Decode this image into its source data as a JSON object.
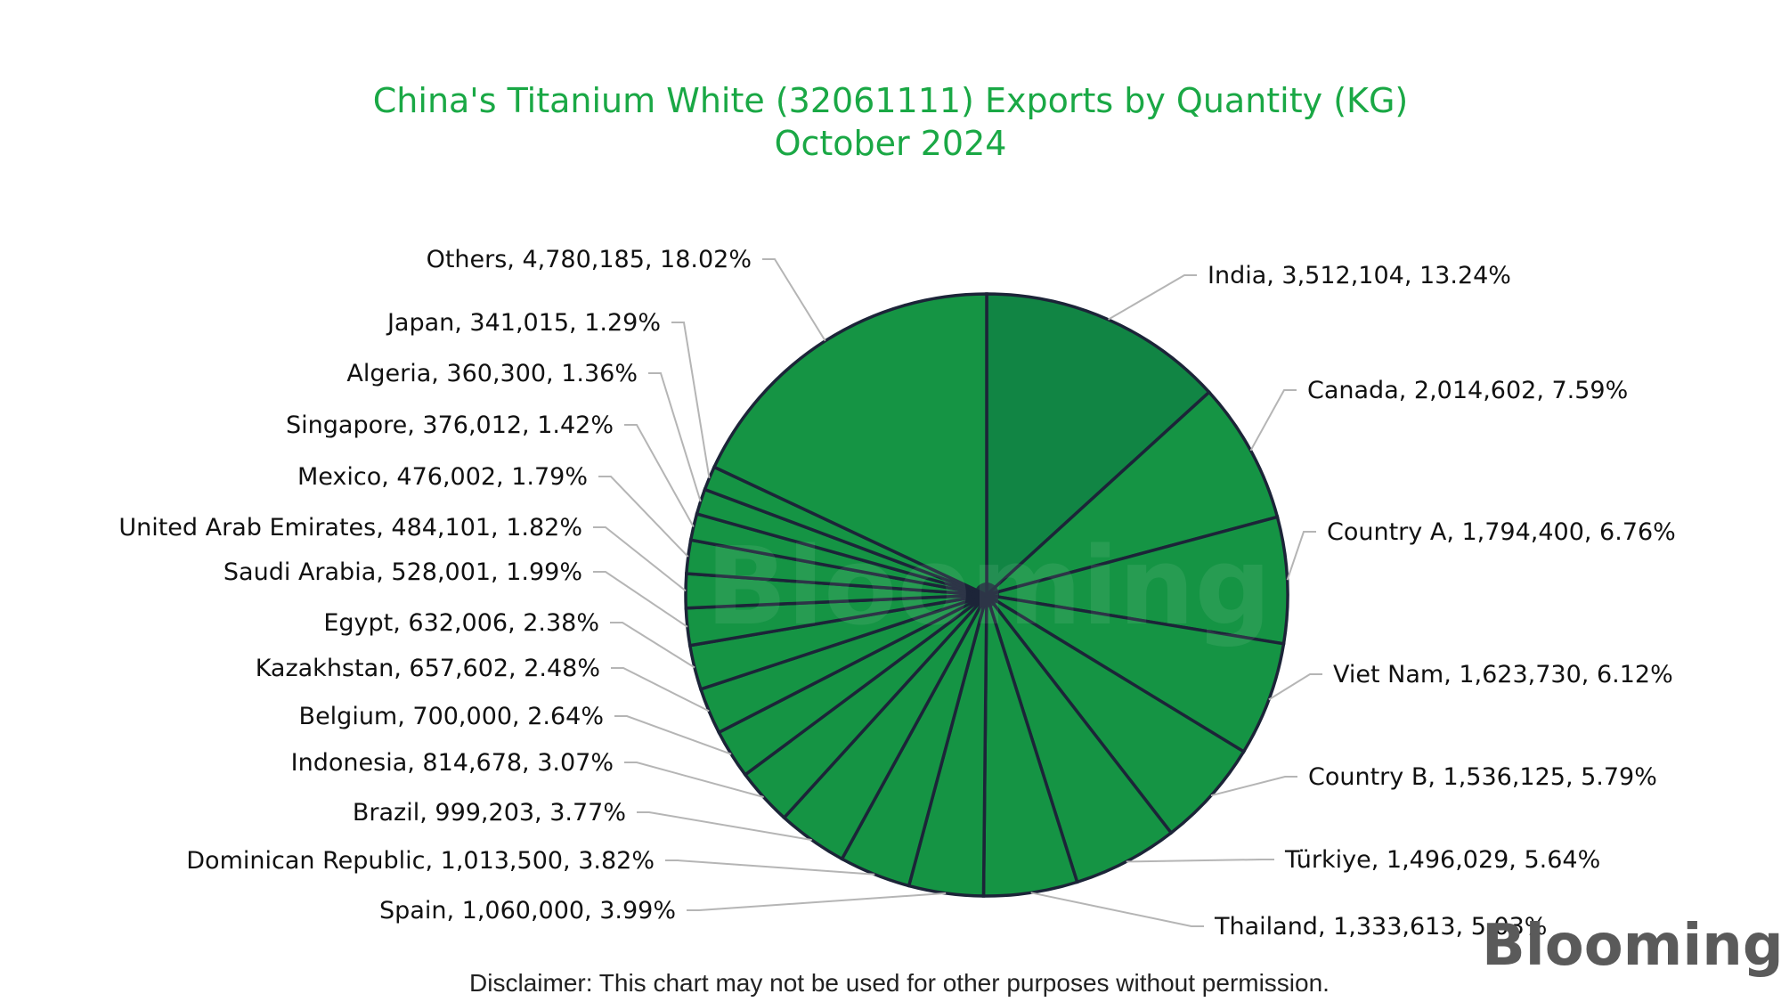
{
  "chart_data": {
    "type": "pie",
    "title": "China's Titanium White (32061111) Exports by Quantity (KG)",
    "subtitle": "October 2024",
    "slices": [
      {
        "name": "India",
        "value": 3512104,
        "value_label": "3,512,104",
        "percent": "13.24%",
        "color": "#118544"
      },
      {
        "name": "Canada",
        "value": 2014602,
        "value_label": "2,014,602",
        "percent": "7.59%",
        "color": "#159444"
      },
      {
        "name": "Country A",
        "value": 1794400,
        "value_label": "1,794,400",
        "percent": "6.76%",
        "color": "#159444"
      },
      {
        "name": "Viet Nam",
        "value": 1623730,
        "value_label": "1,623,730",
        "percent": "6.12%",
        "color": "#159444"
      },
      {
        "name": "Country B",
        "value": 1536125,
        "value_label": "1,536,125",
        "percent": "5.79%",
        "color": "#159444"
      },
      {
        "name": "Türkiye",
        "value": 1496029,
        "value_label": "1,496,029",
        "percent": "5.64%",
        "color": "#159444"
      },
      {
        "name": "Thailand",
        "value": 1333613,
        "value_label": "1,333,613",
        "percent": "5.03%",
        "color": "#159444"
      },
      {
        "name": "Spain",
        "value": 1060000,
        "value_label": "1,060,000",
        "percent": "3.99%",
        "color": "#159444"
      },
      {
        "name": "Dominican Republic",
        "value": 1013500,
        "value_label": "1,013,500",
        "percent": "3.82%",
        "color": "#159444"
      },
      {
        "name": "Brazil",
        "value": 999203,
        "value_label": "999,203",
        "percent": "3.77%",
        "color": "#159444"
      },
      {
        "name": "Indonesia",
        "value": 814678,
        "value_label": "814,678",
        "percent": "3.07%",
        "color": "#159444"
      },
      {
        "name": "Belgium",
        "value": 700000,
        "value_label": "700,000",
        "percent": "2.64%",
        "color": "#159444"
      },
      {
        "name": "Kazakhstan",
        "value": 657602,
        "value_label": "657,602",
        "percent": "2.48%",
        "color": "#159444"
      },
      {
        "name": "Egypt",
        "value": 632006,
        "value_label": "632,006",
        "percent": "2.38%",
        "color": "#159444"
      },
      {
        "name": "Saudi Arabia",
        "value": 528001,
        "value_label": "528,001",
        "percent": "1.99%",
        "color": "#159444"
      },
      {
        "name": "United Arab Emirates",
        "value": 484101,
        "value_label": "484,101",
        "percent": "1.82%",
        "color": "#159444"
      },
      {
        "name": "Mexico",
        "value": 476002,
        "value_label": "476,002",
        "percent": "1.79%",
        "color": "#159444"
      },
      {
        "name": "Singapore",
        "value": 376012,
        "value_label": "376,012",
        "percent": "1.42%",
        "color": "#159444"
      },
      {
        "name": "Algeria",
        "value": 360300,
        "value_label": "360,300",
        "percent": "1.36%",
        "color": "#159444"
      },
      {
        "name": "Japan",
        "value": 341015,
        "value_label": "341,015",
        "percent": "1.29%",
        "color": "#159444"
      },
      {
        "name": "Others",
        "value": 4780185,
        "value_label": "4,780,185",
        "percent": "18.02%",
        "color": "#159444"
      }
    ],
    "start": "12 o'clock",
    "direction": "clockwise",
    "legend": "none"
  },
  "colors": {
    "title": "#1aa845",
    "slice_stroke": "#1c2438",
    "leader_line": "#b5b5b5"
  },
  "watermark": "Blooming",
  "logo": "Blooming",
  "disclaimer": "Disclaimer: This chart may not be used for other purposes without permission."
}
